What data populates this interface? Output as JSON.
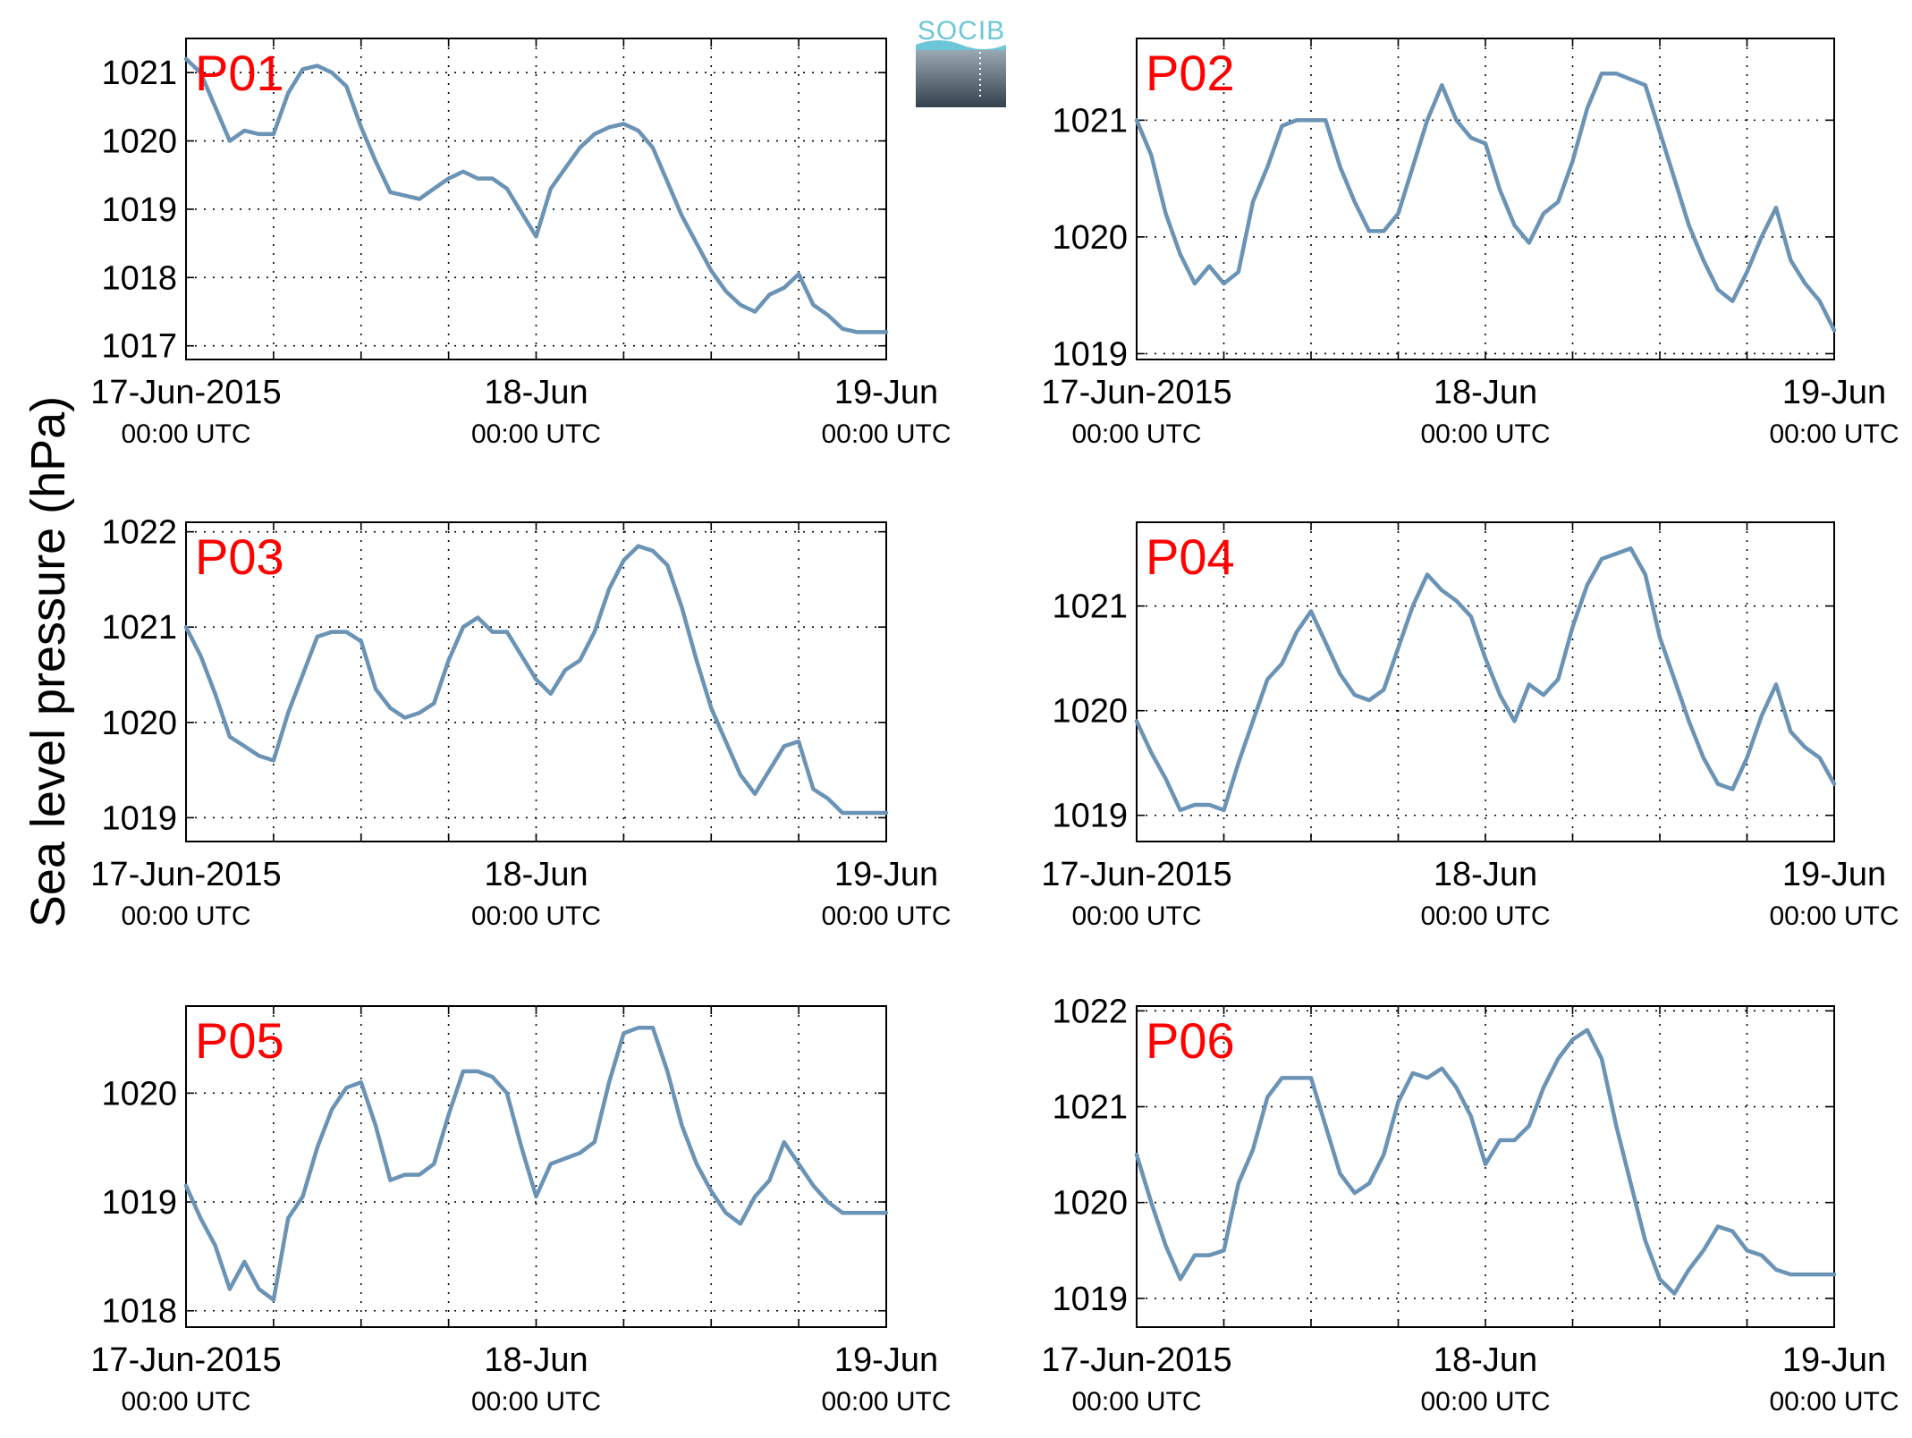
{
  "figure": {
    "ylabel": "Sea level pressure (hPa)",
    "logo_text": "SOCIB",
    "colors": {
      "line": "#6b93b5",
      "panel_label": "#ff0000",
      "logo_accent": "#6cc6d8",
      "logo_dark": "#34424f"
    }
  },
  "chart_data": [
    {
      "type": "line",
      "title": "P01",
      "xlabels": [
        {
          "main": "17-Jun-2015",
          "sub": "00:00 UTC"
        },
        {
          "main": "18-Jun",
          "sub": "00:00 UTC"
        },
        {
          "main": "19-Jun",
          "sub": "00:00 UTC"
        }
      ],
      "xlim": [
        0,
        48
      ],
      "ylim": [
        1016.8,
        1021.5
      ],
      "yticks": [
        1017,
        1018,
        1019,
        1020,
        1021
      ],
      "x": [
        0,
        1,
        2,
        3,
        4,
        5,
        6,
        7,
        8,
        9,
        10,
        11,
        12,
        13,
        14,
        15,
        16,
        17,
        18,
        19,
        20,
        21,
        22,
        23,
        24,
        25,
        26,
        27,
        28,
        29,
        30,
        31,
        32,
        33,
        34,
        35,
        36,
        37,
        38,
        39,
        40,
        41,
        42,
        43,
        44,
        45,
        46,
        47,
        48
      ],
      "y": [
        1021.2,
        1021.0,
        1020.5,
        1020.0,
        1020.15,
        1020.1,
        1020.1,
        1020.7,
        1021.05,
        1021.1,
        1021.0,
        1020.8,
        1020.2,
        1019.7,
        1019.25,
        1019.2,
        1019.15,
        1019.3,
        1019.45,
        1019.55,
        1019.45,
        1019.45,
        1019.3,
        1018.95,
        1018.6,
        1019.3,
        1019.6,
        1019.9,
        1020.1,
        1020.2,
        1020.25,
        1020.15,
        1019.9,
        1019.4,
        1018.9,
        1018.5,
        1018.1,
        1017.8,
        1017.6,
        1017.5,
        1017.75,
        1017.85,
        1018.05,
        1017.6,
        1017.45,
        1017.25,
        1017.2,
        1017.2,
        1017.2
      ]
    },
    {
      "type": "line",
      "title": "P02",
      "xlabels": [
        {
          "main": "17-Jun-2015",
          "sub": "00:00 UTC"
        },
        {
          "main": "18-Jun",
          "sub": "00:00 UTC"
        },
        {
          "main": "19-Jun",
          "sub": "00:00 UTC"
        }
      ],
      "xlim": [
        0,
        48
      ],
      "ylim": [
        1018.95,
        1021.7
      ],
      "yticks": [
        1019,
        1020,
        1021
      ],
      "x": [
        0,
        1,
        2,
        3,
        4,
        5,
        6,
        7,
        8,
        9,
        10,
        11,
        12,
        13,
        14,
        15,
        16,
        17,
        18,
        19,
        20,
        21,
        22,
        23,
        24,
        25,
        26,
        27,
        28,
        29,
        30,
        31,
        32,
        33,
        34,
        35,
        36,
        37,
        38,
        39,
        40,
        41,
        42,
        43,
        44,
        45,
        46,
        47,
        48
      ],
      "y": [
        1021.0,
        1020.7,
        1020.2,
        1019.85,
        1019.6,
        1019.75,
        1019.6,
        1019.7,
        1020.3,
        1020.6,
        1020.95,
        1021.0,
        1021.0,
        1021.0,
        1020.6,
        1020.3,
        1020.05,
        1020.05,
        1020.2,
        1020.6,
        1021.0,
        1021.3,
        1021.0,
        1020.85,
        1020.8,
        1020.4,
        1020.1,
        1019.95,
        1020.2,
        1020.3,
        1020.65,
        1021.1,
        1021.4,
        1021.4,
        1021.35,
        1021.3,
        1020.9,
        1020.5,
        1020.1,
        1019.8,
        1019.55,
        1019.45,
        1019.7,
        1020.0,
        1020.25,
        1019.8,
        1019.6,
        1019.45,
        1019.2
      ]
    },
    {
      "type": "line",
      "title": "P03",
      "xlabels": [
        {
          "main": "17-Jun-2015",
          "sub": "00:00 UTC"
        },
        {
          "main": "18-Jun",
          "sub": "00:00 UTC"
        },
        {
          "main": "19-Jun",
          "sub": "00:00 UTC"
        }
      ],
      "xlim": [
        0,
        48
      ],
      "ylim": [
        1018.75,
        1022.1
      ],
      "yticks": [
        1019,
        1020,
        1021,
        1022
      ],
      "x": [
        0,
        1,
        2,
        3,
        4,
        5,
        6,
        7,
        8,
        9,
        10,
        11,
        12,
        13,
        14,
        15,
        16,
        17,
        18,
        19,
        20,
        21,
        22,
        23,
        24,
        25,
        26,
        27,
        28,
        29,
        30,
        31,
        32,
        33,
        34,
        35,
        36,
        37,
        38,
        39,
        40,
        41,
        42,
        43,
        44,
        45,
        46,
        47,
        48
      ],
      "y": [
        1021.0,
        1020.7,
        1020.3,
        1019.85,
        1019.75,
        1019.65,
        1019.6,
        1020.1,
        1020.5,
        1020.9,
        1020.95,
        1020.95,
        1020.85,
        1020.35,
        1020.15,
        1020.05,
        1020.1,
        1020.2,
        1020.65,
        1021.0,
        1021.1,
        1020.95,
        1020.95,
        1020.7,
        1020.45,
        1020.3,
        1020.55,
        1020.65,
        1020.95,
        1021.4,
        1021.7,
        1021.85,
        1021.8,
        1021.65,
        1021.2,
        1020.65,
        1020.15,
        1019.8,
        1019.45,
        1019.25,
        1019.5,
        1019.75,
        1019.8,
        1019.3,
        1019.2,
        1019.05,
        1019.05,
        1019.05,
        1019.05
      ]
    },
    {
      "type": "line",
      "title": "P04",
      "xlabels": [
        {
          "main": "17-Jun-2015",
          "sub": "00:00 UTC"
        },
        {
          "main": "18-Jun",
          "sub": "00:00 UTC"
        },
        {
          "main": "19-Jun",
          "sub": "00:00 UTC"
        }
      ],
      "xlim": [
        0,
        48
      ],
      "ylim": [
        1018.75,
        1021.8
      ],
      "yticks": [
        1019,
        1020,
        1021
      ],
      "x": [
        0,
        1,
        2,
        3,
        4,
        5,
        6,
        7,
        8,
        9,
        10,
        11,
        12,
        13,
        14,
        15,
        16,
        17,
        18,
        19,
        20,
        21,
        22,
        23,
        24,
        25,
        26,
        27,
        28,
        29,
        30,
        31,
        32,
        33,
        34,
        35,
        36,
        37,
        38,
        39,
        40,
        41,
        42,
        43,
        44,
        45,
        46,
        47,
        48
      ],
      "y": [
        1019.9,
        1019.6,
        1019.35,
        1019.05,
        1019.1,
        1019.1,
        1019.05,
        1019.5,
        1019.9,
        1020.3,
        1020.45,
        1020.75,
        1020.95,
        1020.65,
        1020.35,
        1020.15,
        1020.1,
        1020.2,
        1020.6,
        1021.0,
        1021.3,
        1021.15,
        1021.05,
        1020.9,
        1020.5,
        1020.15,
        1019.9,
        1020.25,
        1020.15,
        1020.3,
        1020.8,
        1021.2,
        1021.45,
        1021.5,
        1021.55,
        1021.3,
        1020.7,
        1020.3,
        1019.9,
        1019.55,
        1019.3,
        1019.25,
        1019.55,
        1019.95,
        1020.25,
        1019.8,
        1019.65,
        1019.55,
        1019.3
      ]
    },
    {
      "type": "line",
      "title": "P05",
      "xlabels": [
        {
          "main": "17-Jun-2015",
          "sub": "00:00 UTC"
        },
        {
          "main": "18-Jun",
          "sub": "00:00 UTC"
        },
        {
          "main": "19-Jun",
          "sub": "00:00 UTC"
        }
      ],
      "xlim": [
        0,
        48
      ],
      "ylim": [
        1017.85,
        1020.8
      ],
      "yticks": [
        1018,
        1019,
        1020
      ],
      "x": [
        0,
        1,
        2,
        3,
        4,
        5,
        6,
        7,
        8,
        9,
        10,
        11,
        12,
        13,
        14,
        15,
        16,
        17,
        18,
        19,
        20,
        21,
        22,
        23,
        24,
        25,
        26,
        27,
        28,
        29,
        30,
        31,
        32,
        33,
        34,
        35,
        36,
        37,
        38,
        39,
        40,
        41,
        42,
        43,
        44,
        45,
        46,
        47,
        48
      ],
      "y": [
        1019.15,
        1018.85,
        1018.6,
        1018.2,
        1018.45,
        1018.2,
        1018.1,
        1018.85,
        1019.05,
        1019.5,
        1019.85,
        1020.05,
        1020.1,
        1019.7,
        1019.2,
        1019.25,
        1019.25,
        1019.35,
        1019.8,
        1020.2,
        1020.2,
        1020.15,
        1020.0,
        1019.5,
        1019.05,
        1019.35,
        1019.4,
        1019.45,
        1019.55,
        1020.1,
        1020.55,
        1020.6,
        1020.6,
        1020.2,
        1019.7,
        1019.35,
        1019.1,
        1018.9,
        1018.8,
        1019.05,
        1019.2,
        1019.55,
        1019.35,
        1019.15,
        1019.0,
        1018.9,
        1018.9,
        1018.9,
        1018.9
      ]
    },
    {
      "type": "line",
      "title": "P06",
      "xlabels": [
        {
          "main": "17-Jun-2015",
          "sub": "00:00 UTC"
        },
        {
          "main": "18-Jun",
          "sub": "00:00 UTC"
        },
        {
          "main": "19-Jun",
          "sub": "00:00 UTC"
        }
      ],
      "xlim": [
        0,
        48
      ],
      "ylim": [
        1018.7,
        1022.05
      ],
      "yticks": [
        1019,
        1020,
        1021,
        1022
      ],
      "x": [
        0,
        1,
        2,
        3,
        4,
        5,
        6,
        7,
        8,
        9,
        10,
        11,
        12,
        13,
        14,
        15,
        16,
        17,
        18,
        19,
        20,
        21,
        22,
        23,
        24,
        25,
        26,
        27,
        28,
        29,
        30,
        31,
        32,
        33,
        34,
        35,
        36,
        37,
        38,
        39,
        40,
        41,
        42,
        43,
        44,
        45,
        46,
        47,
        48
      ],
      "y": [
        1020.5,
        1020.0,
        1019.55,
        1019.2,
        1019.45,
        1019.45,
        1019.5,
        1020.2,
        1020.55,
        1021.1,
        1021.3,
        1021.3,
        1021.3,
        1020.8,
        1020.3,
        1020.1,
        1020.2,
        1020.5,
        1021.05,
        1021.35,
        1021.3,
        1021.4,
        1021.2,
        1020.9,
        1020.4,
        1020.65,
        1020.65,
        1020.8,
        1021.2,
        1021.5,
        1021.7,
        1021.8,
        1021.5,
        1020.8,
        1020.2,
        1019.6,
        1019.2,
        1019.05,
        1019.3,
        1019.5,
        1019.75,
        1019.7,
        1019.5,
        1019.45,
        1019.3,
        1019.25,
        1019.25,
        1019.25,
        1019.25
      ]
    }
  ]
}
